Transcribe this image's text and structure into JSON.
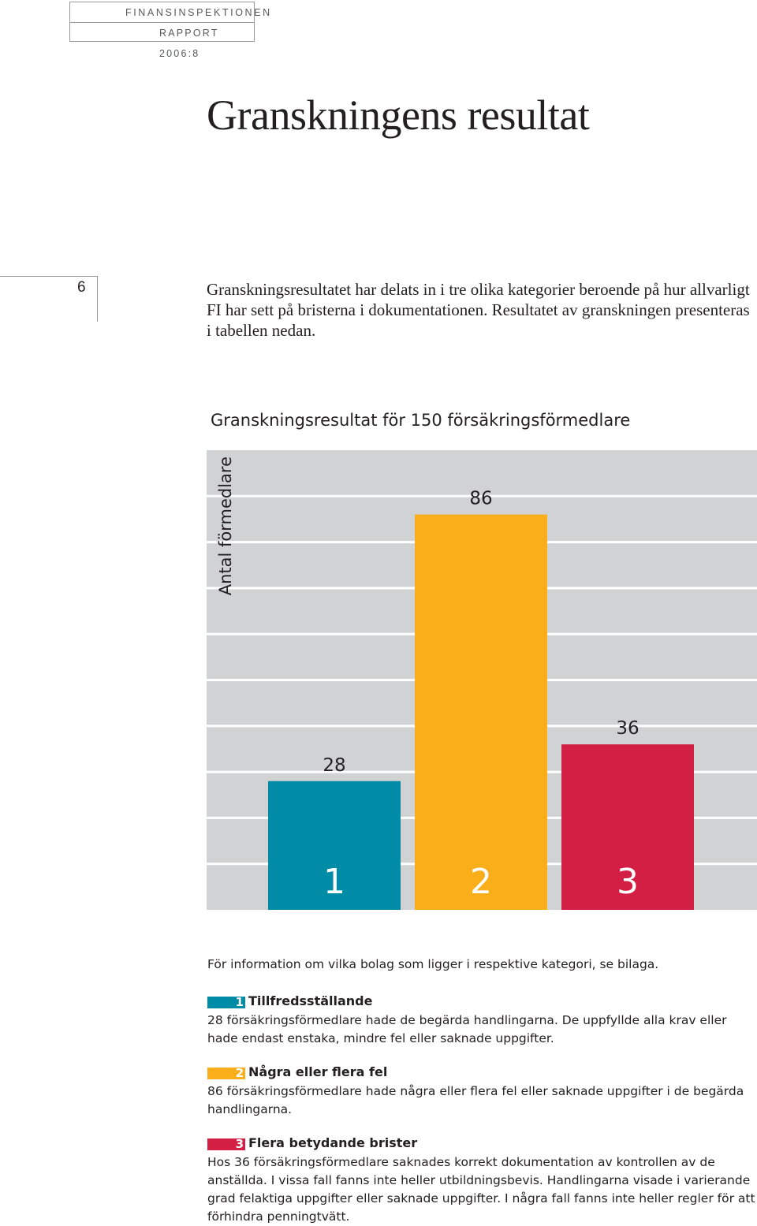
{
  "header": {
    "org": "FINANSINSPEKTIONEN",
    "report": "RAPPORT 2006:8"
  },
  "title": "Granskningens resultat",
  "page_number": "6",
  "intro": "Granskningsresultatet har delats in i tre olika kategorier beroende på hur allvarligt FI har sett på bristerna i dokumentationen. Resultatet av granskningen presenteras i tabellen nedan.",
  "chart_data": {
    "type": "bar",
    "title": "Granskningsresultat för 150 försäkringsförmedlare",
    "ylabel": "Antal förmedlare",
    "xlabel": "",
    "categories": [
      "1",
      "2",
      "3"
    ],
    "values": [
      28,
      86,
      36
    ],
    "colors": [
      "#008ba7",
      "#f9ae1a",
      "#d31f44"
    ],
    "background": "#d1d2d4",
    "gridline_color": "#ffffff",
    "grid": true,
    "ylim": [
      0,
      100
    ]
  },
  "legend_note": "För information om vilka bolag som ligger i respektive kategori, se bilaga.",
  "legend": [
    {
      "num": "1",
      "title": "Tillfredsställande",
      "text": "28 försäkringsförmedlare hade de begärda handlingarna. De uppfyllde alla krav eller hade endast enstaka, mindre fel eller saknade uppgifter."
    },
    {
      "num": "2",
      "title": "Några eller flera fel",
      "text": "86 försäkringsförmedlare hade några eller flera fel eller saknade uppgifter i de begärda handlingarna."
    },
    {
      "num": "3",
      "title": "Flera betydande brister",
      "text": "Hos 36 försäkringsförmedlare saknades korrekt dokumentation av kontrollen av de anställda. I vissa fall fanns inte heller utbildningsbevis. Handlingarna visade i varierande grad felaktiga uppgifter eller saknade uppgifter. I några fall fanns inte heller regler för att förhindra penningtvätt."
    }
  ]
}
